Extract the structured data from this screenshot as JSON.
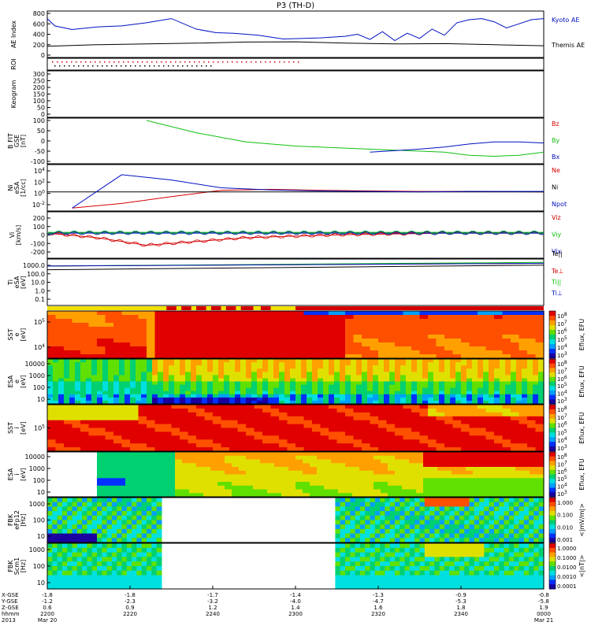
{
  "title": "P3 (TH-D)",
  "colors": {
    "red": "#d40000",
    "green": "#10c010",
    "blue": "#0010c0",
    "black": "#000000",
    "yellow": "#f0e000"
  },
  "chart_data": [
    {
      "type": "line",
      "panel": "ae_index",
      "ylabel": [
        "AE Index"
      ],
      "yticks": [
        "800",
        "600",
        "400",
        "200",
        "0"
      ],
      "ylim": [
        0,
        800
      ],
      "series": [
        {
          "name": "Kyoto AE",
          "color": "blue",
          "x": [
            0,
            3,
            10,
            20,
            30,
            40,
            50,
            60,
            68,
            75,
            85,
            95,
            110,
            120,
            125,
            130,
            135,
            140,
            145,
            150,
            155,
            160,
            165,
            170,
            175,
            180,
            185,
            190,
            195,
            200
          ],
          "values": [
            700,
            560,
            490,
            540,
            560,
            620,
            700,
            500,
            430,
            420,
            380,
            310,
            330,
            360,
            400,
            300,
            450,
            280,
            420,
            320,
            500,
            380,
            620,
            680,
            700,
            640,
            520,
            600,
            680,
            700
          ]
        },
        {
          "name": "Themis AE",
          "color": "black",
          "x": [
            0,
            20,
            40,
            60,
            80,
            100,
            120,
            140,
            160,
            180,
            200
          ],
          "values": [
            170,
            200,
            215,
            230,
            250,
            255,
            230,
            215,
            220,
            200,
            180
          ]
        }
      ]
    },
    {
      "type": "scatter",
      "panel": "roi",
      "ylabel": [
        "ROI"
      ]
    },
    {
      "type": "heatmap",
      "panel": "keogram",
      "ylabel": [
        "Keogram"
      ],
      "yticks": [
        "300",
        "250",
        "200",
        "150",
        "100",
        "50",
        "0"
      ]
    },
    {
      "type": "line",
      "panel": "b_field",
      "ylabel": [
        "B FIT",
        "GSE",
        "[nT]"
      ],
      "yticks": [
        "100",
        "50",
        "0",
        "-50",
        "-100"
      ],
      "ylim": [
        -100,
        100
      ],
      "series": [
        {
          "name": "Bz",
          "color": "red",
          "x": [],
          "values": []
        },
        {
          "name": "By",
          "color": "green",
          "x": [
            40,
            60,
            80,
            100,
            120,
            140,
            160,
            170,
            180,
            190,
            200
          ],
          "values": [
            100,
            40,
            -5,
            -25,
            -35,
            -45,
            -55,
            -70,
            -75,
            -70,
            -55
          ]
        },
        {
          "name": "Bx",
          "color": "blue",
          "x": [
            130,
            150,
            160,
            170,
            180,
            190,
            200
          ],
          "values": [
            -55,
            -40,
            -30,
            -15,
            -5,
            -5,
            -10
          ]
        }
      ]
    },
    {
      "type": "line",
      "panel": "density",
      "ylabel": [
        "Ni",
        "eSA",
        "[1/cc]"
      ],
      "yticks": [
        "10^4",
        "10^2",
        "10^0",
        "10^-2"
      ],
      "ylim_log10": [
        -3,
        5
      ],
      "series": [
        {
          "name": "Ne",
          "color": "red",
          "x": [
            10,
            30,
            50,
            70,
            90,
            110,
            130,
            150,
            170,
            200
          ],
          "values": [
            -2.9,
            -2.0,
            -0.7,
            0.5,
            0.7,
            0.5,
            0.4,
            0.3,
            0.3,
            0.2
          ]
        },
        {
          "name": "Ni",
          "color": "black",
          "x": [
            0,
            200
          ],
          "values": [
            0.2,
            0.2
          ]
        },
        {
          "name": "Npot",
          "color": "blue",
          "x": [
            10,
            30,
            50,
            70,
            90,
            110,
            130,
            150,
            170,
            200
          ],
          "values": [
            -2.9,
            3.5,
            2.5,
            1.0,
            0.6,
            0.4,
            0.3,
            0.2,
            0.3,
            0.3
          ]
        }
      ]
    },
    {
      "type": "line",
      "panel": "velocity",
      "ylabel": [
        "Vi",
        "[km/s]"
      ],
      "yticks": [
        "200",
        "100",
        "0",
        "-100",
        "-200"
      ],
      "ylim": [
        -300,
        250
      ],
      "series": [
        {
          "name": "Viz",
          "color": "red",
          "x": [
            0,
            20,
            40,
            60,
            80,
            100,
            120,
            140,
            160,
            180,
            200
          ],
          "values": [
            0,
            -60,
            -160,
            -110,
            -60,
            -40,
            -20,
            -10,
            0,
            0,
            0
          ]
        },
        {
          "name": "Viy",
          "color": "green",
          "x": [
            0,
            200
          ],
          "values": [
            10,
            10
          ]
        },
        {
          "name": "Vix",
          "color": "blue",
          "x": [
            0,
            200
          ],
          "values": [
            0,
            0
          ]
        }
      ]
    },
    {
      "type": "line",
      "panel": "temperature",
      "ylabel": [
        "Ti",
        "eSA",
        "[eV]"
      ],
      "yticks": [
        "1000.0",
        "100.0",
        "10.0",
        "1.0",
        "0.1"
      ],
      "ylim_log10": [
        -1,
        3.5
      ],
      "series": [
        {
          "name": "Te||",
          "color": "black",
          "x": [
            0,
            40,
            80,
            120,
            160,
            200
          ],
          "values": [
            2.6,
            2.7,
            2.8,
            2.9,
            3.0,
            3.1
          ]
        },
        {
          "name": "Te⊥",
          "color": "red",
          "x": [
            0,
            200
          ],
          "values": [
            3.0,
            3.3
          ]
        },
        {
          "name": "Ti||",
          "color": "green",
          "x": [
            0,
            200
          ],
          "values": [
            3.0,
            3.4
          ]
        },
        {
          "name": "Ti⊥",
          "color": "blue",
          "x": [
            0,
            200
          ],
          "values": [
            3.0,
            3.3
          ]
        }
      ]
    },
    {
      "type": "heatmap",
      "panel": "sst_e",
      "ylabel": [
        "SST",
        "e",
        "[eV]"
      ],
      "yticks": [
        "10^5",
        "10^4"
      ]
    },
    {
      "type": "heatmap",
      "panel": "esa_e",
      "ylabel": [
        "ESA",
        "e",
        "[eV]"
      ],
      "yticks": [
        "10000",
        "1000",
        "100",
        "10"
      ]
    },
    {
      "type": "heatmap",
      "panel": "sst_i",
      "ylabel": [
        "SST",
        "i",
        "[eV]"
      ],
      "yticks": [
        "10^5"
      ]
    },
    {
      "type": "heatmap",
      "panel": "esa_i",
      "ylabel": [
        "ESA",
        "i",
        "[eV]"
      ],
      "yticks": [
        "10000",
        "1000",
        "100",
        "10"
      ]
    },
    {
      "type": "heatmap",
      "panel": "fbk_e",
      "ylabel": [
        "FBK",
        "eFp12",
        "[Hz]"
      ],
      "yticks": [
        "1000",
        "100",
        "10"
      ]
    },
    {
      "type": "heatmap",
      "panel": "fbk_b",
      "ylabel": [
        "FBK",
        "Scm1",
        "[Hz]"
      ],
      "yticks": [
        "1000",
        "100",
        "10"
      ]
    }
  ],
  "colorbars": [
    {
      "label": "Eflux, EFU",
      "ticks": [
        "10^8",
        "10^7",
        "10^6",
        "10^5",
        "10^4",
        "10^3"
      ]
    },
    {
      "label": "Eflux, EFU",
      "ticks": [
        "10^8",
        "10^7",
        "10^6",
        "10^5",
        "10^4",
        "10^3"
      ]
    },
    {
      "label": "Eflux, EFU",
      "ticks": [
        "10^8",
        "10^7",
        "10^6",
        "10^5",
        "10^4",
        "10^3"
      ]
    },
    {
      "label": "Eflux, EFU",
      "ticks": [
        "10^8",
        "10^7",
        "10^6",
        "10^5",
        "10^4",
        "10^3"
      ]
    },
    {
      "label": "<|mV/m|>",
      "ticks": [
        "1.000",
        "0.100",
        "0.010",
        "0.001"
      ]
    },
    {
      "label": "<|nT|>",
      "ticks": [
        "1.0000",
        "0.1000",
        "0.0100",
        "0.0010",
        "0.0001"
      ]
    }
  ],
  "x_axis": {
    "row_labels": [
      "X-GSE",
      "Y-GSE",
      "Z-GSE",
      "hhmm",
      "2013"
    ],
    "columns": [
      {
        "vals": [
          "-1.8",
          "-1.2",
          "0.6",
          "2200",
          "Mar 20"
        ]
      },
      {
        "vals": [
          "-1.8",
          "-2.3",
          "0.9",
          "2220",
          ""
        ]
      },
      {
        "vals": [
          "-1.7",
          "-3.2",
          "1.2",
          "2240",
          ""
        ]
      },
      {
        "vals": [
          "-1.4",
          "-4.0",
          "1.4",
          "2300",
          ""
        ]
      },
      {
        "vals": [
          "-1.3",
          "-4.7",
          "1.6",
          "2320",
          ""
        ]
      },
      {
        "vals": [
          "-0.9",
          "-5.3",
          "1.8",
          "2340",
          ""
        ]
      },
      {
        "vals": [
          "-0.8",
          "-5.8",
          "1.9",
          "0000",
          "Mar 21"
        ]
      }
    ]
  }
}
